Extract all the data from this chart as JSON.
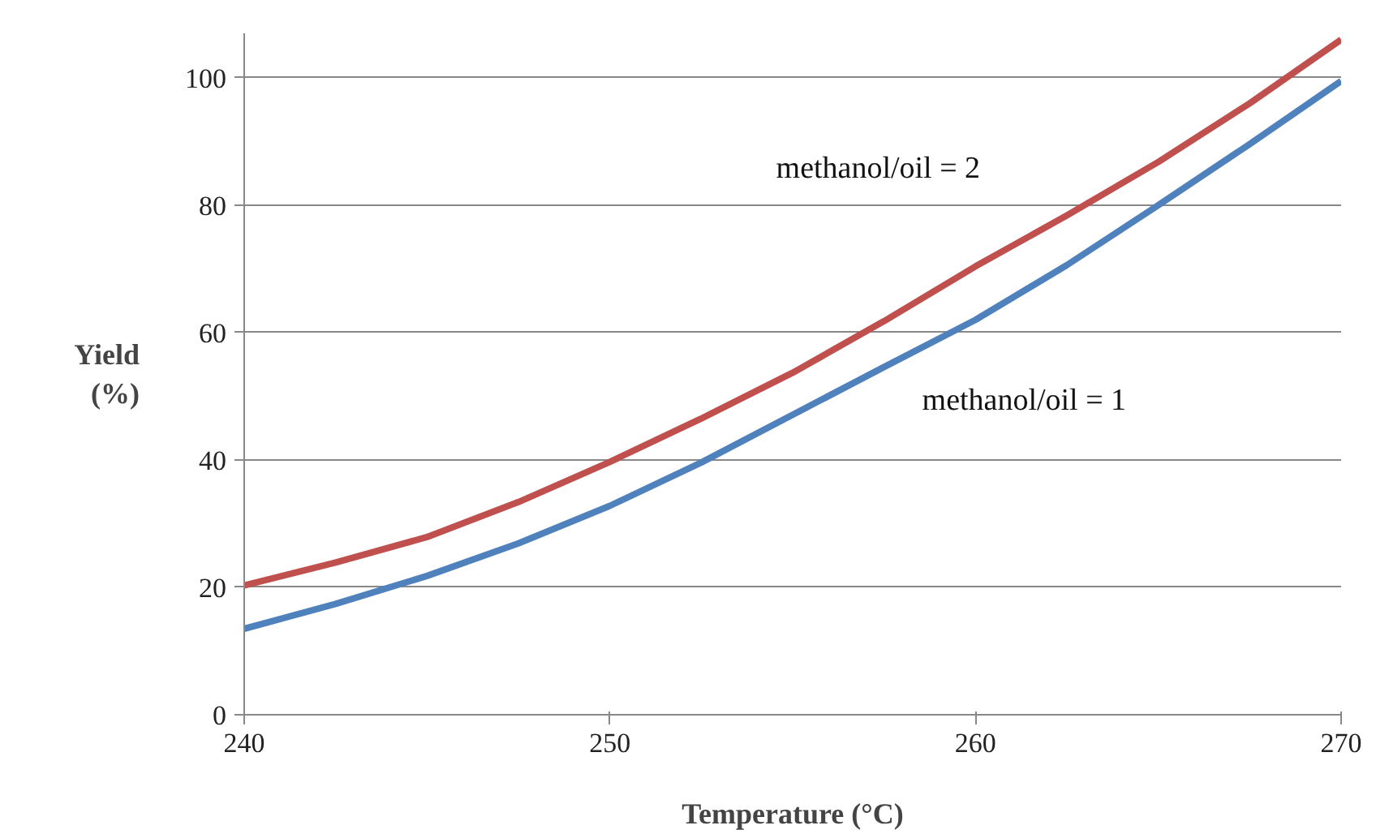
{
  "chart_data": {
    "type": "line",
    "xlabel": "Temperature (°C)",
    "ylabel": "Yield\n(%)",
    "x": [
      240,
      242.5,
      245,
      247.5,
      250,
      252.5,
      255,
      257.5,
      260,
      262.5,
      265,
      267.5,
      270
    ],
    "series": [
      {
        "name": "methanol/oil = 1",
        "color": "#4f81bd",
        "values": [
          13.5,
          17.4,
          21.8,
          26.9,
          32.8,
          39.6,
          47.1,
          54.6,
          62.0,
          70.6,
          80.0,
          89.6,
          99.5
        ]
      },
      {
        "name": "methanol/oil = 2",
        "color": "#c0504d",
        "values": [
          20.3,
          23.9,
          27.9,
          33.4,
          39.7,
          46.5,
          53.7,
          61.8,
          70.4,
          78.4,
          86.8,
          96.0,
          106.0
        ]
      }
    ],
    "xlim": [
      240,
      270
    ],
    "ylim": [
      0,
      107
    ],
    "xticks": [
      240,
      250,
      260,
      270
    ],
    "yticks": [
      0,
      20,
      40,
      60,
      80,
      100
    ],
    "grid": "y",
    "marker": "none",
    "line_style": "solid"
  }
}
